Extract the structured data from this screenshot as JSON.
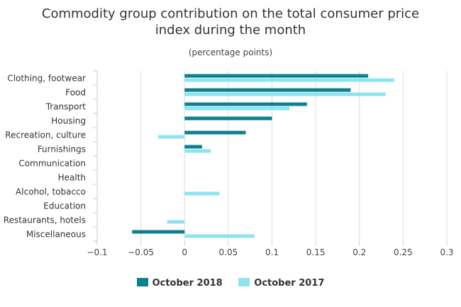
{
  "chart_data": {
    "type": "bar",
    "orientation": "horizontal",
    "title_lines": [
      "Commodity group contribution on the total consumer price",
      "index during the month"
    ],
    "subtitle": "(percentage points)",
    "categories": [
      "Clothing, footwear",
      "Food",
      "Transport",
      "Housing",
      "Recreation, culture",
      "Furnishings",
      "Communication",
      "Health",
      "Alcohol, tobacco",
      "Education",
      "Restaurants, hotels",
      "Miscellaneous"
    ],
    "series": [
      {
        "name": "October 2018",
        "color": "#0e7f8e",
        "values": [
          0.21,
          0.19,
          0.14,
          0.1,
          0.07,
          0.02,
          0,
          0,
          0,
          0,
          0,
          -0.06
        ]
      },
      {
        "name": "October 2017",
        "color": "#8fe3f0",
        "values": [
          0.24,
          0.23,
          0.12,
          0,
          -0.03,
          0.03,
          0,
          0,
          0.04,
          0,
          -0.02,
          0.08
        ]
      }
    ],
    "xlim": [
      -0.1,
      0.3
    ],
    "xticks": [
      "−0.1",
      "−0.05",
      "0",
      "0.05",
      "0.1",
      "0.15",
      "0.2",
      "0.25",
      "0.3"
    ],
    "xtick_values": [
      -0.1,
      -0.05,
      0,
      0.05,
      0.1,
      0.15,
      0.2,
      0.25,
      0.3
    ],
    "grid": true,
    "legend_position": "bottom"
  }
}
